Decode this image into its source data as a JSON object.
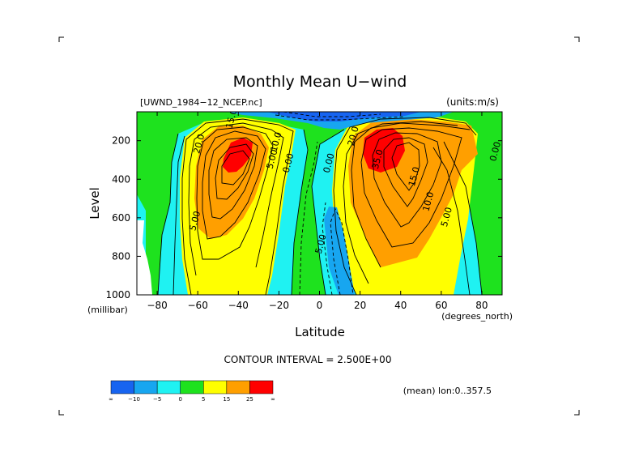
{
  "chart_data": {
    "type": "contour",
    "title": "Monthly Mean U−wind",
    "dataset_label": "[UWND_1984−12_NCEP.nc]",
    "units_label": "(units:m/s)",
    "xlabel": "Latitude",
    "x_units_label": "(degrees_north)",
    "ylabel": "Level",
    "y_units_label": "(millibar)",
    "x_ticks": [
      -80,
      -60,
      -40,
      -20,
      0,
      20,
      40,
      60,
      80
    ],
    "x_tick_labels": [
      "−80",
      "−60",
      "−40",
      "−20",
      "0",
      "20",
      "40",
      "60",
      "80"
    ],
    "y_ticks": [
      200,
      400,
      600,
      800,
      1000
    ],
    "xlim": [
      -90,
      90
    ],
    "ylim": [
      1000,
      50
    ],
    "contour_interval_text": "CONTOUR INTERVAL = 2.500E+00",
    "mean_note": "(mean) lon:0..357.5",
    "contour_labels": [
      {
        "text": "15.0",
        "lat": -42,
        "p": 90
      },
      {
        "text": "20.0",
        "lat": -58,
        "p": 220
      },
      {
        "text": "10.0",
        "lat": -20,
        "p": 210
      },
      {
        "text": "5.00",
        "lat": -22,
        "p": 300
      },
      {
        "text": "0.00",
        "lat": -14,
        "p": 320
      },
      {
        "text": "5.00",
        "lat": -60,
        "p": 620
      },
      {
        "text": "0.00",
        "lat": 6,
        "p": 320
      },
      {
        "text": "5.00",
        "lat": 2,
        "p": 740
      },
      {
        "text": "20.0",
        "lat": 18,
        "p": 180
      },
      {
        "text": "35.0",
        "lat": 30,
        "p": 300
      },
      {
        "text": "15.0",
        "lat": 48,
        "p": 390
      },
      {
        "text": "10.0",
        "lat": 55,
        "p": 520
      },
      {
        "text": "5.00",
        "lat": 64,
        "p": 600
      },
      {
        "text": "0.00",
        "lat": 88,
        "p": 260
      }
    ],
    "colorbar": {
      "colors": [
        "#1764f0",
        "#17a6f0",
        "#1ff2f2",
        "#1ee21e",
        "#ffff00",
        "#ff9f00",
        "#ff0000"
      ],
      "labels": [
        "∞",
        "−10",
        "−5",
        "0",
        "5",
        "15",
        "25",
        "∞"
      ]
    },
    "colors": {
      "neg_strong": "#1764f0",
      "neg_med": "#17a6f0",
      "neg_light": "#1ff2f2",
      "zero": "#1ee21e",
      "pos_light": "#ffff00",
      "pos_med": "#ff9f00",
      "pos_strong": "#ff0000"
    }
  }
}
